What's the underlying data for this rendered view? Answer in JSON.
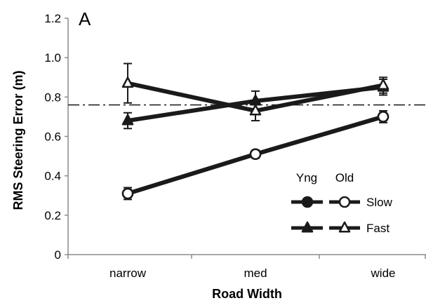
{
  "chart_data": {
    "type": "line",
    "panel_label": "A",
    "xlabel": "Road Width",
    "ylabel": "RMS Steering Error (m)",
    "categories": [
      "narrow",
      "med",
      "wide"
    ],
    "ylim": [
      0,
      1.2
    ],
    "yticks": [
      "0",
      "0.2",
      "0.4",
      "0.6",
      "0.8",
      "1.0",
      "1.2"
    ],
    "reference_line": {
      "y": 0.76,
      "style": "dash-dot"
    },
    "legend": {
      "headers": [
        "Yng",
        "Old"
      ],
      "rows": [
        "Slow",
        "Fast"
      ]
    },
    "series": [
      {
        "group": "Yng",
        "speed": "Slow",
        "marker": "circle-filled",
        "values": [
          0.31,
          0.51,
          0.7
        ],
        "errors": [
          0.03,
          0.02,
          0.03
        ]
      },
      {
        "group": "Old",
        "speed": "Slow",
        "marker": "circle-open",
        "values": [
          0.31,
          0.51,
          0.7
        ],
        "errors": [
          0.02,
          0.02,
          0.02
        ]
      },
      {
        "group": "Yng",
        "speed": "Fast",
        "marker": "triangle-filled",
        "values": [
          0.68,
          0.78,
          0.85
        ],
        "errors": [
          0.04,
          0.05,
          0.04
        ]
      },
      {
        "group": "Old",
        "speed": "Fast",
        "marker": "triangle-open",
        "values": [
          0.87,
          0.73,
          0.86
        ],
        "errors": [
          0.1,
          0.05,
          0.04
        ]
      }
    ],
    "colors": {
      "line": "#1a1a1a",
      "marker_fill_open": "#ffffff"
    }
  }
}
